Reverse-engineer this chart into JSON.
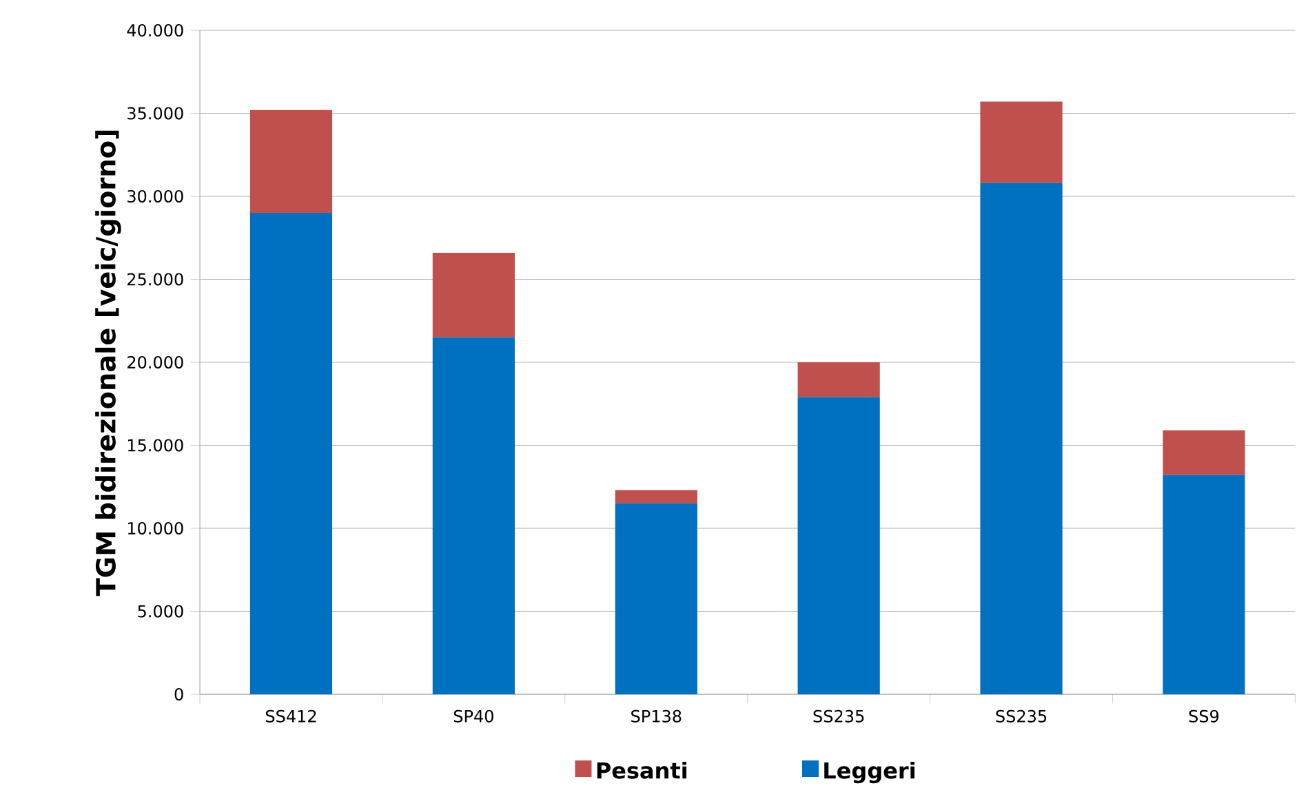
{
  "chart_data": {
    "type": "bar",
    "stacked": true,
    "ylabel": "TGM bidirezionale [veic/giorno]",
    "categories": [
      "SS412",
      "SP40",
      "SP138",
      "SS235",
      "SS235",
      "SS9"
    ],
    "series": [
      {
        "name": "Leggeri",
        "color": "#0070c0",
        "values": [
          29000,
          21500,
          11500,
          17900,
          30800,
          13200
        ]
      },
      {
        "name": "Pesanti",
        "color": "#c0504d",
        "values": [
          6200,
          5100,
          800,
          2100,
          4900,
          2700
        ]
      }
    ],
    "ylim": [
      0,
      40000
    ],
    "yticks": [
      {
        "value": 0,
        "label": "0"
      },
      {
        "value": 5000,
        "label": "5.000"
      },
      {
        "value": 10000,
        "label": "10.000"
      },
      {
        "value": 15000,
        "label": "15.000"
      },
      {
        "value": 20000,
        "label": "20.000"
      },
      {
        "value": 25000,
        "label": "25.000"
      },
      {
        "value": 30000,
        "label": "30.000"
      },
      {
        "value": 35000,
        "label": "35.000"
      },
      {
        "value": 40000,
        "label": "40.000"
      }
    ],
    "grid": "y",
    "legend": "bottom"
  }
}
